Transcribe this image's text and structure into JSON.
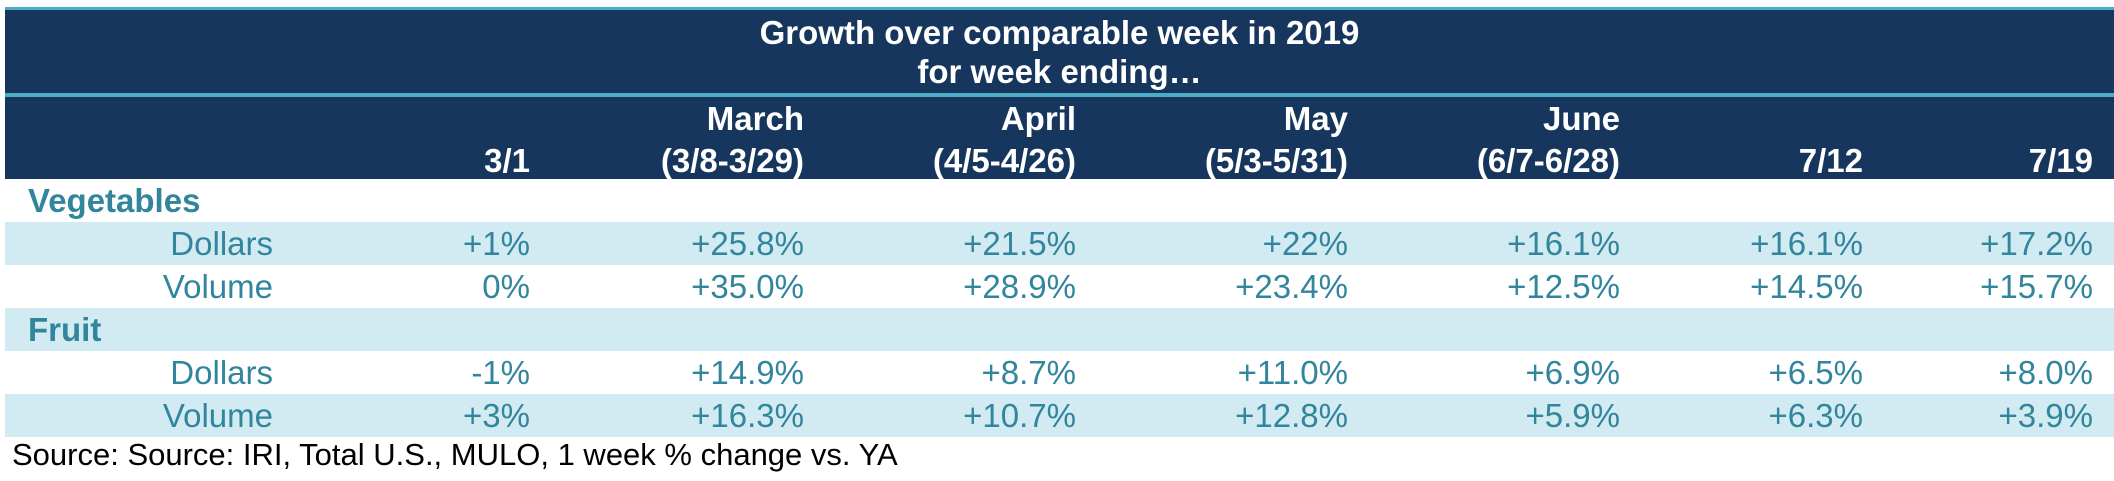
{
  "title": {
    "line1": "Growth over comparable week in 2019",
    "line2": "for week ending…"
  },
  "columns": [
    {
      "top": "",
      "bottom": "3/1"
    },
    {
      "top": "March",
      "bottom": "(3/8-3/29)"
    },
    {
      "top": "April",
      "bottom": "(4/5-4/26)"
    },
    {
      "top": "May",
      "bottom": "(5/3-5/31)"
    },
    {
      "top": "June",
      "bottom": "(6/7-6/28)"
    },
    {
      "top": "",
      "bottom": "7/12"
    },
    {
      "top": "",
      "bottom": "7/19"
    }
  ],
  "groups": [
    {
      "name": "Vegetables",
      "rows": [
        {
          "label": "Dollars",
          "values": [
            "+1%",
            "+25.8%",
            "+21.5%",
            "+22%",
            "+16.1%",
            "+16.1%",
            "+17.2%"
          ]
        },
        {
          "label": "Volume",
          "values": [
            "0%",
            "+35.0%",
            "+28.9%",
            "+23.4%",
            "+12.5%",
            "+14.5%",
            "+15.7%"
          ]
        }
      ]
    },
    {
      "name": "Fruit",
      "rows": [
        {
          "label": "Dollars",
          "values": [
            "-1%",
            "+14.9%",
            "+8.7%",
            "+11.0%",
            "+6.9%",
            "+6.5%",
            "+8.0%"
          ]
        },
        {
          "label": "Volume",
          "values": [
            "+3%",
            "+16.3%",
            "+10.7%",
            "+12.8%",
            "+5.9%",
            "+6.3%",
            "+3.9%"
          ]
        }
      ]
    }
  ],
  "source": "Source: Source: IRI, Total U.S., MULO, 1 week % change vs. YA",
  "colors": {
    "header_bg": "#17365d",
    "accent_line": "#4bacc6",
    "row_shade": "#d2eaf1",
    "teal_text": "#31859c"
  }
}
